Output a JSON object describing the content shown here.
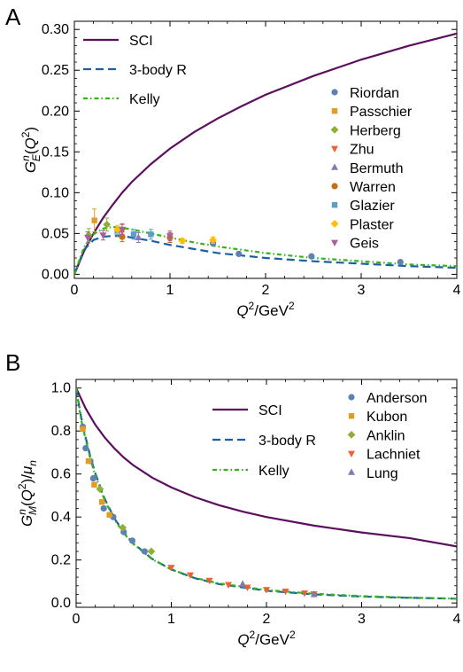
{
  "colors": {
    "sci": "#5b0f5e",
    "body3": "#1d5fa3",
    "kelly": "#33b21a"
  },
  "chart_data": [
    {
      "panel": "A",
      "type": "line",
      "xlabel_main": "Q",
      "xlabel_sup": "2",
      "xlabel_unit": "/GeV",
      "xlabel_unit_sup": "2",
      "ylabel": "G_E^n(Q^2)",
      "xlim": [
        0,
        4
      ],
      "ylim": [
        -0.005,
        0.31
      ],
      "xticks": [
        "0",
        "1",
        "2",
        "3",
        "4"
      ],
      "yticks": [
        "0.00",
        "0.05",
        "0.10",
        "0.15",
        "0.20",
        "0.25",
        "0.30"
      ],
      "ytick_values": [
        0,
        0.05,
        0.1,
        0.15,
        0.2,
        0.25,
        0.3
      ],
      "lines": [
        {
          "name": "SCI",
          "style": "solid",
          "color": "#5b0f5e",
          "x": [
            0,
            0.1,
            0.2,
            0.3,
            0.4,
            0.5,
            0.6,
            0.8,
            1.0,
            1.25,
            1.5,
            1.75,
            2.0,
            2.5,
            3.0,
            3.5,
            4.0
          ],
          "y": [
            0,
            0.028,
            0.05,
            0.069,
            0.085,
            0.1,
            0.113,
            0.135,
            0.154,
            0.174,
            0.191,
            0.206,
            0.22,
            0.243,
            0.263,
            0.28,
            0.295
          ]
        },
        {
          "name": "3-body R",
          "style": "dashed",
          "color": "#1d5fa3",
          "x": [
            0,
            0.1,
            0.2,
            0.3,
            0.4,
            0.5,
            0.6,
            0.8,
            1.0,
            1.25,
            1.5,
            2.0,
            2.5,
            3.0,
            3.5,
            4.0
          ],
          "y": [
            0,
            0.03,
            0.042,
            0.046,
            0.047,
            0.047,
            0.045,
            0.041,
            0.036,
            0.031,
            0.026,
            0.02,
            0.016,
            0.013,
            0.01,
            0.008
          ]
        },
        {
          "name": "Kelly",
          "style": "dashdot",
          "color": "#33b21a",
          "x": [
            0,
            0.1,
            0.2,
            0.3,
            0.4,
            0.5,
            0.6,
            0.8,
            1.0,
            1.25,
            1.5,
            2.0,
            2.5,
            3.0,
            3.5,
            4.0
          ],
          "y": [
            0,
            0.033,
            0.049,
            0.056,
            0.058,
            0.057,
            0.055,
            0.05,
            0.045,
            0.039,
            0.034,
            0.026,
            0.02,
            0.016,
            0.012,
            0.01
          ]
        }
      ],
      "datasets": [
        {
          "name": "Riordan",
          "marker": "circle",
          "color": "#5e81b5",
          "points": [
            [
              1.45,
              0.038
            ],
            [
              1.72,
              0.025
            ],
            [
              2.48,
              0.022
            ],
            [
              3.41,
              0.015
            ]
          ]
        },
        {
          "name": "Passchier",
          "marker": "square",
          "color": "#e19c24",
          "points": [
            [
              0.21,
              0.066,
              0.014
            ]
          ]
        },
        {
          "name": "Herberg",
          "marker": "diamond",
          "color": "#8fb032",
          "points": [
            [
              0.15,
              0.048,
              0.008
            ],
            [
              0.34,
              0.061,
              0.008
            ]
          ]
        },
        {
          "name": "Zhu",
          "marker": "tridown",
          "color": "#eb6235",
          "points": [
            [
              0.5,
              0.053,
              0.009
            ]
          ]
        },
        {
          "name": "Bermuth",
          "marker": "triup",
          "color": "#8778b3",
          "points": [
            [
              0.67,
              0.045,
              0.006
            ]
          ]
        },
        {
          "name": "Warren",
          "marker": "circle",
          "color": "#c56e1a",
          "points": [
            [
              0.5,
              0.046,
              0.006
            ],
            [
              1.0,
              0.045,
              0.006
            ]
          ]
        },
        {
          "name": "Glazier",
          "marker": "square",
          "color": "#5d9ec7",
          "points": [
            [
              0.45,
              0.052,
              0.006
            ],
            [
              0.62,
              0.049,
              0.006
            ],
            [
              0.8,
              0.049,
              0.006
            ]
          ]
        },
        {
          "name": "Plaster",
          "marker": "diamond",
          "color": "#ffbf00",
          "points": [
            [
              0.45,
              0.055,
              0.005
            ],
            [
              1.13,
              0.041,
              0.003
            ],
            [
              1.45,
              0.042,
              0.004
            ]
          ]
        },
        {
          "name": "Geis",
          "marker": "tridown",
          "color": "#a5609d",
          "points": [
            [
              0.14,
              0.045,
              0.007
            ],
            [
              0.3,
              0.048,
              0.006
            ],
            [
              0.5,
              0.055,
              0.006
            ],
            [
              1.0,
              0.047,
              0.006
            ]
          ]
        }
      ]
    },
    {
      "panel": "B",
      "type": "line",
      "xlabel_main": "Q",
      "xlabel_sup": "2",
      "xlabel_unit": "/GeV",
      "xlabel_unit_sup": "2",
      "ylabel": "G_M^n(Q^2)/μ_n",
      "xlim": [
        0,
        4
      ],
      "ylim": [
        -0.02,
        1.04
      ],
      "xticks": [
        "0",
        "1",
        "2",
        "3",
        "4"
      ],
      "yticks": [
        "0.0",
        "0.2",
        "0.4",
        "0.6",
        "0.8",
        "1.0"
      ],
      "ytick_values": [
        0,
        0.2,
        0.4,
        0.6,
        0.8,
        1.0
      ],
      "lines": [
        {
          "name": "SCI",
          "style": "solid",
          "color": "#5b0f5e",
          "x": [
            0,
            0.1,
            0.2,
            0.3,
            0.4,
            0.5,
            0.6,
            0.8,
            1.0,
            1.25,
            1.5,
            1.75,
            2.0,
            2.5,
            3.0,
            3.5,
            4.0
          ],
          "y": [
            1.0,
            0.905,
            0.83,
            0.77,
            0.72,
            0.677,
            0.641,
            0.583,
            0.538,
            0.492,
            0.455,
            0.425,
            0.4,
            0.36,
            0.328,
            0.302,
            0.263
          ]
        },
        {
          "name": "3-body R",
          "style": "dashed",
          "color": "#1d5fa3",
          "x": [
            0,
            0.05,
            0.1,
            0.15,
            0.2,
            0.3,
            0.4,
            0.5,
            0.6,
            0.8,
            1.0,
            1.25,
            1.5,
            2.0,
            2.5,
            3.0,
            3.5,
            4.0
          ],
          "y": [
            1.0,
            0.87,
            0.77,
            0.68,
            0.605,
            0.485,
            0.395,
            0.33,
            0.278,
            0.205,
            0.156,
            0.115,
            0.088,
            0.057,
            0.04,
            0.03,
            0.024,
            0.02
          ]
        },
        {
          "name": "Kelly",
          "style": "dashdot",
          "color": "#33b21a",
          "x": [
            0,
            0.05,
            0.1,
            0.15,
            0.2,
            0.3,
            0.4,
            0.5,
            0.6,
            0.8,
            1.0,
            1.25,
            1.5,
            2.0,
            2.5,
            3.0,
            3.5,
            4.0
          ],
          "y": [
            1.0,
            0.86,
            0.76,
            0.67,
            0.595,
            0.478,
            0.39,
            0.325,
            0.275,
            0.203,
            0.156,
            0.117,
            0.091,
            0.06,
            0.043,
            0.032,
            0.025,
            0.02
          ]
        }
      ],
      "datasets": [
        {
          "name": "Anderson",
          "marker": "circle",
          "color": "#5e81b5",
          "points": [
            [
              0.07,
              0.82
            ],
            [
              0.1,
              0.72
            ],
            [
              0.15,
              0.66
            ],
            [
              0.18,
              0.58
            ],
            [
              0.29,
              0.44
            ],
            [
              0.39,
              0.4
            ],
            [
              0.5,
              0.33
            ],
            [
              0.59,
              0.29
            ],
            [
              0.72,
              0.24
            ]
          ]
        },
        {
          "name": "Kubon",
          "marker": "square",
          "color": "#e19c24",
          "points": [
            [
              0.07,
              0.81
            ],
            [
              0.13,
              0.66
            ],
            [
              0.19,
              0.55
            ],
            [
              0.27,
              0.47
            ],
            [
              0.35,
              0.41
            ]
          ]
        },
        {
          "name": "Anklin",
          "marker": "diamond",
          "color": "#8fb032",
          "points": [
            [
              0.25,
              0.53
            ],
            [
              0.49,
              0.35
            ],
            [
              0.79,
              0.24
            ]
          ]
        },
        {
          "name": "Lachniet",
          "marker": "tridown",
          "color": "#eb6235",
          "points": [
            [
              1.0,
              0.165
            ],
            [
              1.2,
              0.13
            ],
            [
              1.4,
              0.105
            ],
            [
              1.6,
              0.085
            ],
            [
              1.8,
              0.073
            ],
            [
              2.0,
              0.062
            ],
            [
              2.2,
              0.055
            ],
            [
              2.4,
              0.046
            ],
            [
              2.5,
              0.042
            ]
          ]
        },
        {
          "name": "Lung",
          "marker": "triup",
          "color": "#8778b3",
          "points": [
            [
              1.75,
              0.088
            ],
            [
              2.5,
              0.04
            ]
          ]
        }
      ]
    }
  ]
}
